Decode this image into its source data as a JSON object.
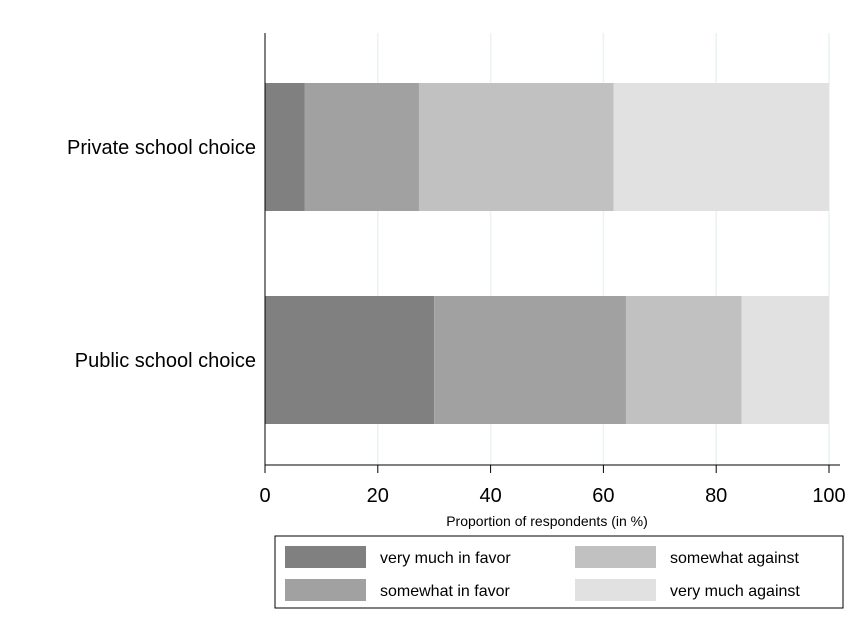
{
  "chart_data": {
    "type": "bar",
    "orientation": "horizontal",
    "stacked": true,
    "title": "",
    "xlabel": "Proportion of respondents (in %)",
    "ylabel": "",
    "xlim": [
      0,
      100
    ],
    "x_ticks": [
      "0",
      "20",
      "40",
      "60",
      "80",
      "100"
    ],
    "grid": "vertical",
    "legend_position": "bottom",
    "categories": [
      "Private school choice",
      "Public school choice"
    ],
    "series": [
      {
        "name": "very much in favor",
        "color": "#808080",
        "values": [
          7,
          30
        ]
      },
      {
        "name": "somewhat in favor",
        "color": "#a1a1a1",
        "values": [
          20.3,
          34
        ]
      },
      {
        "name": "somewhat against",
        "color": "#c1c1c1",
        "values": [
          34.5,
          20.5
        ]
      },
      {
        "name": "very much against",
        "color": "#e1e1e1",
        "values": [
          38.2,
          15.5
        ]
      }
    ]
  }
}
